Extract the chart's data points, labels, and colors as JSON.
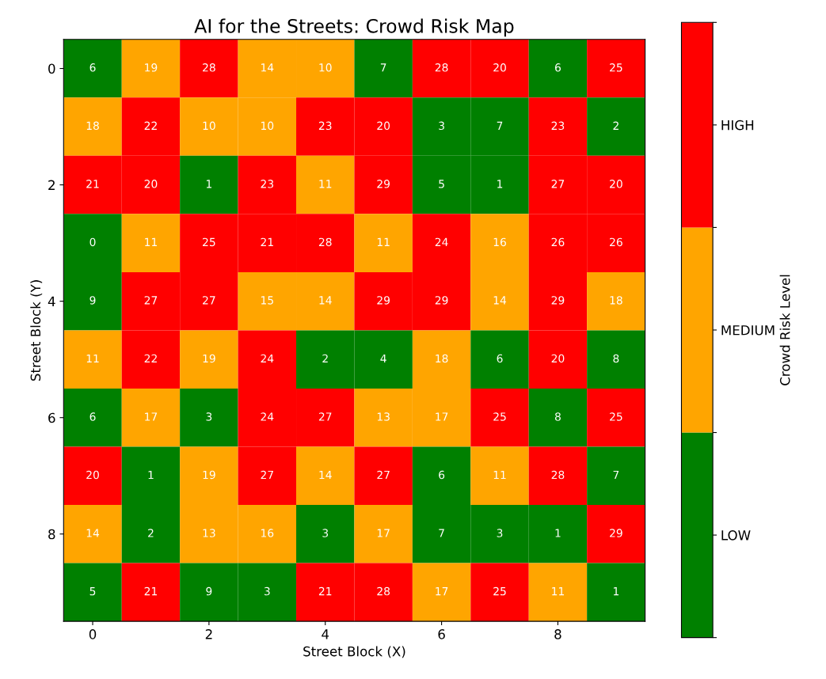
{
  "chart_data": {
    "type": "heatmap",
    "title": "AI for the Streets: Crowd Risk Map",
    "xlabel": "Street Block (X)",
    "ylabel": "Street Block (Y)",
    "clabel": "Crowd Risk Level",
    "xlim": [
      -0.5,
      9.5
    ],
    "ylim": [
      9.5,
      -0.5
    ],
    "xticks": [
      0,
      2,
      4,
      6,
      8
    ],
    "yticks": [
      0,
      2,
      4,
      6,
      8
    ],
    "colors": [
      "#008000",
      "#ffa500",
      "#ff0000"
    ],
    "clim": [
      0,
      30
    ],
    "cticks": [
      {
        "value": 0,
        "label": null
      },
      {
        "value": 5,
        "label": "LOW"
      },
      {
        "value": 10,
        "label": null
      },
      {
        "value": 15,
        "label": "MEDIUM"
      },
      {
        "value": 20,
        "label": null
      },
      {
        "value": 25,
        "label": "HIGH"
      },
      {
        "value": 30,
        "label": null
      }
    ],
    "data_labels": true,
    "cells": [
      [
        6,
        19,
        28,
        14,
        10,
        7,
        28,
        20,
        6,
        25
      ],
      [
        18,
        22,
        10,
        10,
        23,
        20,
        3,
        7,
        23,
        2
      ],
      [
        21,
        20,
        1,
        23,
        11,
        29,
        5,
        1,
        27,
        20
      ],
      [
        0,
        11,
        25,
        21,
        28,
        11,
        24,
        16,
        26,
        26
      ],
      [
        9,
        27,
        27,
        15,
        14,
        29,
        29,
        14,
        29,
        18
      ],
      [
        11,
        22,
        19,
        24,
        2,
        4,
        18,
        6,
        20,
        8
      ],
      [
        6,
        17,
        3,
        24,
        27,
        13,
        17,
        25,
        8,
        25
      ],
      [
        20,
        1,
        19,
        27,
        14,
        27,
        6,
        11,
        28,
        7
      ],
      [
        14,
        2,
        13,
        16,
        3,
        17,
        7,
        3,
        1,
        29
      ],
      [
        5,
        21,
        9,
        3,
        21,
        28,
        17,
        25,
        11,
        1
      ]
    ]
  }
}
